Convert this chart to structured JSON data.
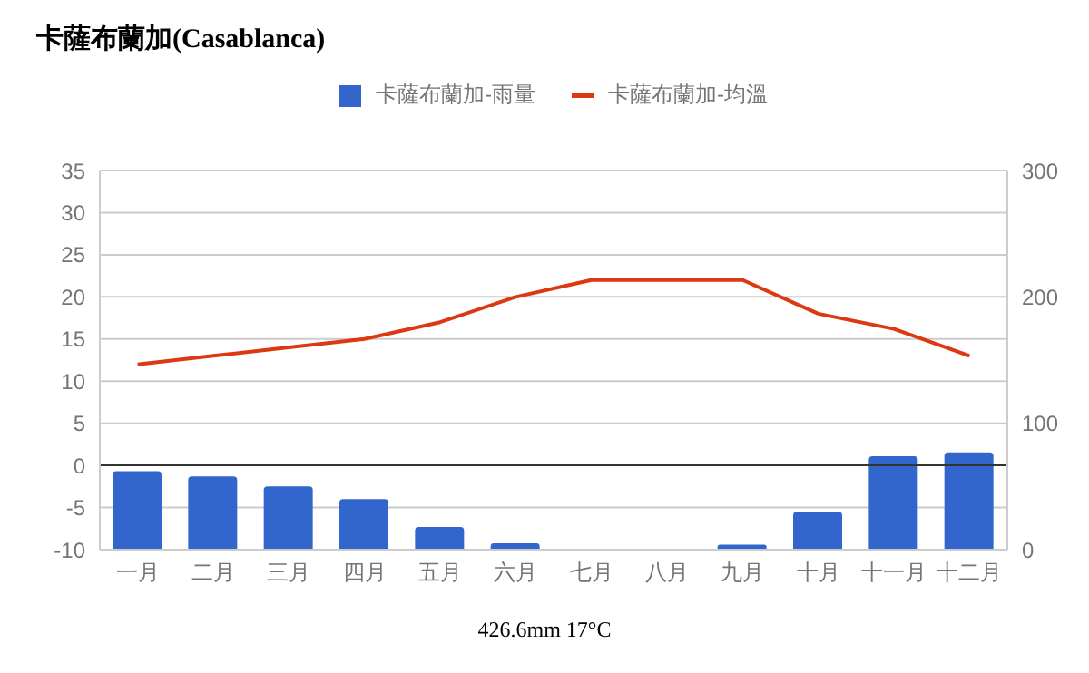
{
  "chart_data": {
    "type": "bar",
    "title": "卡薩布蘭加(Casablanca)",
    "categories": [
      "一月",
      "二月",
      "三月",
      "四月",
      "五月",
      "六月",
      "七月",
      "八月",
      "九月",
      "十月",
      "十一月",
      "十二月"
    ],
    "series": [
      {
        "name": "卡薩布蘭加-雨量",
        "axis": "y2",
        "color": "#3366cc",
        "values": [
          62,
          58,
          50,
          40,
          18,
          5,
          0,
          0,
          4,
          30,
          74,
          77
        ]
      },
      {
        "name": "卡薩布蘭加-均溫",
        "type": "line",
        "axis": "y",
        "color": "#dc3912",
        "values": [
          12,
          13,
          14,
          15,
          17,
          20,
          22,
          22,
          22,
          18,
          16.2,
          13
        ]
      }
    ],
    "ylim": [
      -10,
      35
    ],
    "yticks": [
      -10,
      -5,
      0,
      5,
      10,
      15,
      20,
      25,
      30,
      35
    ],
    "y2lim": [
      0,
      300
    ],
    "y2ticks": [
      0,
      100,
      200,
      300
    ],
    "ref_lines": [
      {
        "axis": "y",
        "value": 0,
        "color": "#333333"
      }
    ],
    "grid": "y",
    "legend": "top",
    "marker": "none",
    "annotations": [
      "426.6mm 17°C"
    ]
  }
}
